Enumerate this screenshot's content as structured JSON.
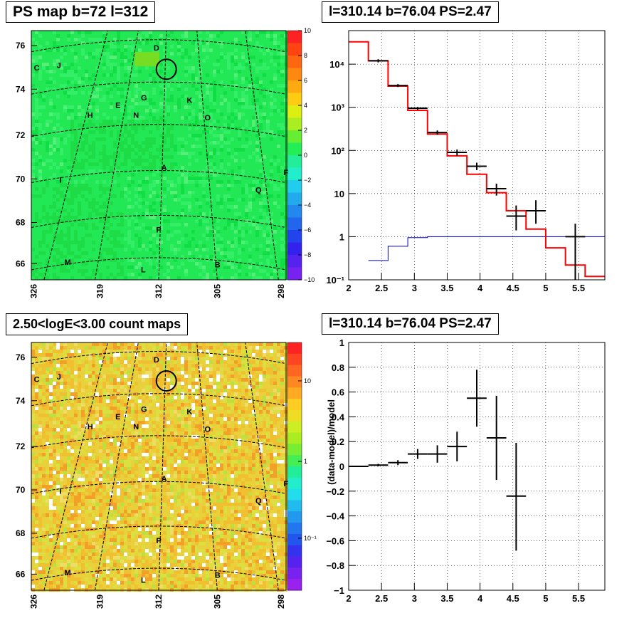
{
  "panels": {
    "top_left_title": "PS map b=72 l=312",
    "top_right_title": "l=310.14 b=76.04 PS=2.47",
    "bottom_left_title": "2.50<logE<3.00 count maps",
    "bottom_right_title": "l=310.14 b=76.04 PS=2.47"
  },
  "colors": {
    "green_map": "#22ee55",
    "count_map": "#e8d03a",
    "red_line": "#ff0000",
    "blue_line": "#0000cc",
    "data_marker": "#000000"
  },
  "chart_data": [
    {
      "type": "heatmap",
      "title": "PS map b=72 l=312",
      "x_tick_labels": [
        "326",
        "319",
        "312",
        "305",
        "298"
      ],
      "y_tick_labels": [
        "66",
        "68",
        "70",
        "72",
        "74",
        "76"
      ],
      "colorbar": {
        "range": [
          -10,
          10
        ],
        "tick_labels": [
          "10",
          "8",
          "6",
          "4",
          "2",
          "0",
          "−2",
          "−4",
          "−6",
          "−8",
          "−10"
        ]
      },
      "source_labels": [
        "D",
        "C",
        "J",
        "G",
        "K",
        "E",
        "N",
        "H",
        "O",
        "A",
        "F",
        "I",
        "Q",
        "P",
        "M",
        "L",
        "B"
      ]
    },
    {
      "type": "line",
      "title": "l=310.14 b=76.04 PS=2.47",
      "x_tick_labels": [
        "2",
        "2.5",
        "3",
        "3.5",
        "4",
        "4.5",
        "5",
        "5.5"
      ],
      "xlim": [
        2,
        5.9
      ],
      "y_scale": "log",
      "ylim": [
        0.1,
        60000
      ],
      "y_tick_labels": [
        "10⁻¹",
        "1",
        "10",
        "10²",
        "10³",
        "10⁴"
      ],
      "series": [
        {
          "style": "histogram-red",
          "bin_edges": [
            2.0,
            2.3,
            2.6,
            2.9,
            3.2,
            3.5,
            3.8,
            4.1,
            4.4,
            4.7,
            5.0,
            5.3,
            5.6,
            5.9
          ],
          "values": [
            33000,
            12000,
            3100,
            850,
            240,
            75,
            28,
            10.5,
            4,
            1.5,
            0.55,
            0.22,
            0.12
          ]
        },
        {
          "style": "histogram-blue",
          "bin_edges": [
            2.3,
            2.6,
            2.9,
            3.2,
            5.9
          ],
          "values": [
            0.28,
            0.6,
            0.95,
            1.0
          ]
        },
        {
          "style": "data-points",
          "points": [
            {
              "x": 2.45,
              "y": 12000,
              "xerr": 0.15,
              "ylo": 11000,
              "yhi": 13000
            },
            {
              "x": 2.75,
              "y": 3200,
              "xerr": 0.15,
              "ylo": 2950,
              "yhi": 3450
            },
            {
              "x": 3.05,
              "y": 950,
              "xerr": 0.15,
              "ylo": 880,
              "yhi": 1020
            },
            {
              "x": 3.35,
              "y": 260,
              "xerr": 0.15,
              "ylo": 230,
              "yhi": 290
            },
            {
              "x": 3.65,
              "y": 90,
              "xerr": 0.15,
              "ylo": 75,
              "yhi": 105
            },
            {
              "x": 3.95,
              "y": 43,
              "xerr": 0.15,
              "ylo": 35,
              "yhi": 52
            },
            {
              "x": 4.25,
              "y": 13,
              "xerr": 0.15,
              "ylo": 9,
              "yhi": 17
            },
            {
              "x": 4.55,
              "y": 3,
              "xerr": 0.15,
              "ylo": 1.4,
              "yhi": 5.3
            },
            {
              "x": 4.85,
              "y": 4,
              "xerr": 0.15,
              "ylo": 2,
              "yhi": 7
            },
            {
              "x": 5.45,
              "y": 1,
              "xerr": 0.15,
              "ylo": 0.1,
              "yhi": 2
            }
          ]
        }
      ]
    },
    {
      "type": "heatmap",
      "title": "2.50<logE<3.00 count maps",
      "x_tick_labels": [
        "326",
        "319",
        "312",
        "305",
        "298"
      ],
      "y_tick_labels": [
        "66",
        "68",
        "70",
        "72",
        "74",
        "76"
      ],
      "colorbar": {
        "scale": "log",
        "tick_labels": [
          "10",
          "1",
          "10⁻¹"
        ]
      },
      "source_labels": [
        "D",
        "C",
        "J",
        "G",
        "K",
        "E",
        "N",
        "H",
        "O",
        "A",
        "F",
        "I",
        "Q",
        "P",
        "M",
        "L",
        "B"
      ]
    },
    {
      "type": "scatter",
      "title": "l=310.14 b=76.04 PS=2.47",
      "ylabel": "(data-model)/model",
      "xlim": [
        2,
        5.9
      ],
      "ylim": [
        -1,
        1
      ],
      "x_tick_labels": [
        "2",
        "2.5",
        "3",
        "3.5",
        "4",
        "4.5",
        "5",
        "5.5"
      ],
      "y_tick_labels": [
        "1",
        "0.8",
        "0.6",
        "0.4",
        "0.2",
        "0",
        "−0.2",
        "−0.4",
        "−0.6",
        "−0.8",
        "−1"
      ],
      "points": [
        {
          "x": 2.15,
          "y": 0.0,
          "xerr": 0.15,
          "ylo": -0.005,
          "yhi": 0.005
        },
        {
          "x": 2.45,
          "y": 0.01,
          "xerr": 0.15,
          "ylo": 0.0,
          "yhi": 0.02
        },
        {
          "x": 2.75,
          "y": 0.03,
          "xerr": 0.15,
          "ylo": 0.01,
          "yhi": 0.05
        },
        {
          "x": 3.05,
          "y": 0.1,
          "xerr": 0.15,
          "ylo": 0.06,
          "yhi": 0.14
        },
        {
          "x": 3.35,
          "y": 0.1,
          "xerr": 0.15,
          "ylo": 0.03,
          "yhi": 0.17
        },
        {
          "x": 3.65,
          "y": 0.16,
          "xerr": 0.15,
          "ylo": 0.04,
          "yhi": 0.28
        },
        {
          "x": 3.95,
          "y": 0.55,
          "xerr": 0.15,
          "ylo": 0.32,
          "yhi": 0.78
        },
        {
          "x": 4.25,
          "y": 0.23,
          "xerr": 0.15,
          "ylo": -0.11,
          "yhi": 0.57
        },
        {
          "x": 4.55,
          "y": -0.24,
          "xerr": 0.15,
          "ylo": -0.68,
          "yhi": 0.19
        }
      ]
    }
  ]
}
